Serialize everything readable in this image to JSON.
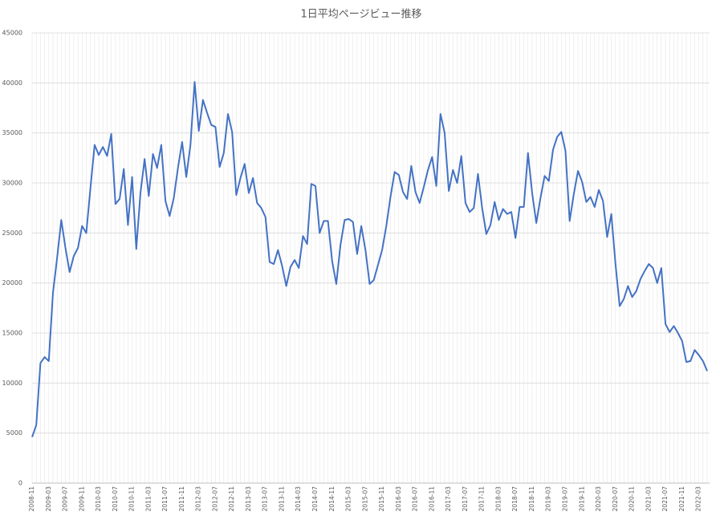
{
  "chart_data": {
    "type": "line",
    "title": "1日平均ページビュー推移",
    "categories": [
      "2008-11",
      null,
      null,
      null,
      "2009-03",
      null,
      null,
      null,
      "2009-07",
      null,
      null,
      null,
      "2009-11",
      null,
      null,
      null,
      "2010-03",
      null,
      null,
      null,
      "2010-07",
      null,
      null,
      null,
      "2010-11",
      null,
      null,
      null,
      "2011-03",
      null,
      null,
      null,
      "2011-07",
      null,
      null,
      null,
      "2011-11",
      null,
      null,
      null,
      "2012-03",
      null,
      null,
      null,
      "2012-07",
      null,
      null,
      null,
      "2012-11",
      null,
      null,
      null,
      "2013-03",
      null,
      null,
      null,
      "2013-07",
      null,
      null,
      null,
      "2013-11",
      null,
      null,
      null,
      "2014-03",
      null,
      null,
      null,
      "2014-07",
      null,
      null,
      null,
      "2014-11",
      null,
      null,
      null,
      "2015-03",
      null,
      null,
      null,
      "2015-07",
      null,
      null,
      null,
      "2015-11",
      null,
      null,
      null,
      "2016-03",
      null,
      null,
      null,
      "2016-07",
      null,
      null,
      null,
      "2016-11",
      null,
      null,
      null,
      "2017-03",
      null,
      null,
      null,
      "2017-07",
      null,
      null,
      null,
      "2017-11",
      null,
      null,
      null,
      "2018-03",
      null,
      null,
      null,
      "2018-07",
      null,
      null,
      null,
      "2018-11",
      null,
      null,
      null,
      "2019-03",
      null,
      null,
      null,
      "2019-07",
      null,
      null,
      null,
      "2019-11",
      null,
      null,
      null,
      "2020-03",
      null,
      null,
      null,
      "2020-07",
      null,
      null,
      null,
      "2020-11",
      null,
      null,
      null,
      "2021-03",
      null,
      null,
      null,
      "2021-07",
      null,
      null,
      null,
      "2021-11",
      null,
      null,
      null,
      "2022-03",
      null,
      null
    ],
    "values": [
      4600,
      5800,
      12000,
      12600,
      12200,
      19000,
      22500,
      26300,
      23500,
      21100,
      22700,
      23500,
      25700,
      25000,
      29500,
      33800,
      32800,
      33600,
      32700,
      34900,
      27900,
      28400,
      31400,
      25800,
      30600,
      23400,
      29000,
      32400,
      28700,
      32900,
      31500,
      33800,
      28200,
      26700,
      28500,
      31500,
      34100,
      30600,
      33800,
      40100,
      35200,
      38300,
      37000,
      35800,
      35600,
      31600,
      33000,
      36900,
      35100,
      28800,
      30500,
      31900,
      29000,
      30500,
      28000,
      27500,
      26600,
      22100,
      21900,
      23300,
      21700,
      19700,
      21600,
      22300,
      21500,
      24700,
      23900,
      29900,
      29700,
      25000,
      26200,
      26200,
      22200,
      19900,
      23800,
      26300,
      26400,
      26100,
      22900,
      25700,
      23300,
      19900,
      20300,
      21800,
      23300,
      25700,
      28600,
      31100,
      30800,
      29100,
      28400,
      31700,
      29100,
      28000,
      29600,
      31300,
      32600,
      29700,
      36900,
      35000,
      29200,
      31300,
      30000,
      32700,
      28000,
      27100,
      27500,
      30900,
      27500,
      24900,
      25800,
      28100,
      26300,
      27400,
      26900,
      27100,
      24500,
      27600,
      27600,
      33000,
      29000,
      26000,
      28500,
      30700,
      30200,
      33300,
      34600,
      35100,
      33200,
      26200,
      28900,
      31200,
      30100,
      28100,
      28600,
      27600,
      29300,
      28200,
      24600,
      26900,
      21900,
      17700,
      18400,
      19700,
      18600,
      19200,
      20400,
      21200,
      21900,
      21500,
      20000,
      21500,
      15900,
      15100,
      15700,
      15000,
      14200,
      12100,
      12200,
      13300,
      12800,
      12200,
      11200
    ],
    "color": "#4472c4",
    "ylim": [
      0,
      45000
    ],
    "yticks": [
      0,
      5000,
      10000,
      15000,
      20000,
      25000,
      30000,
      35000,
      40000,
      45000
    ],
    "grid": true
  }
}
